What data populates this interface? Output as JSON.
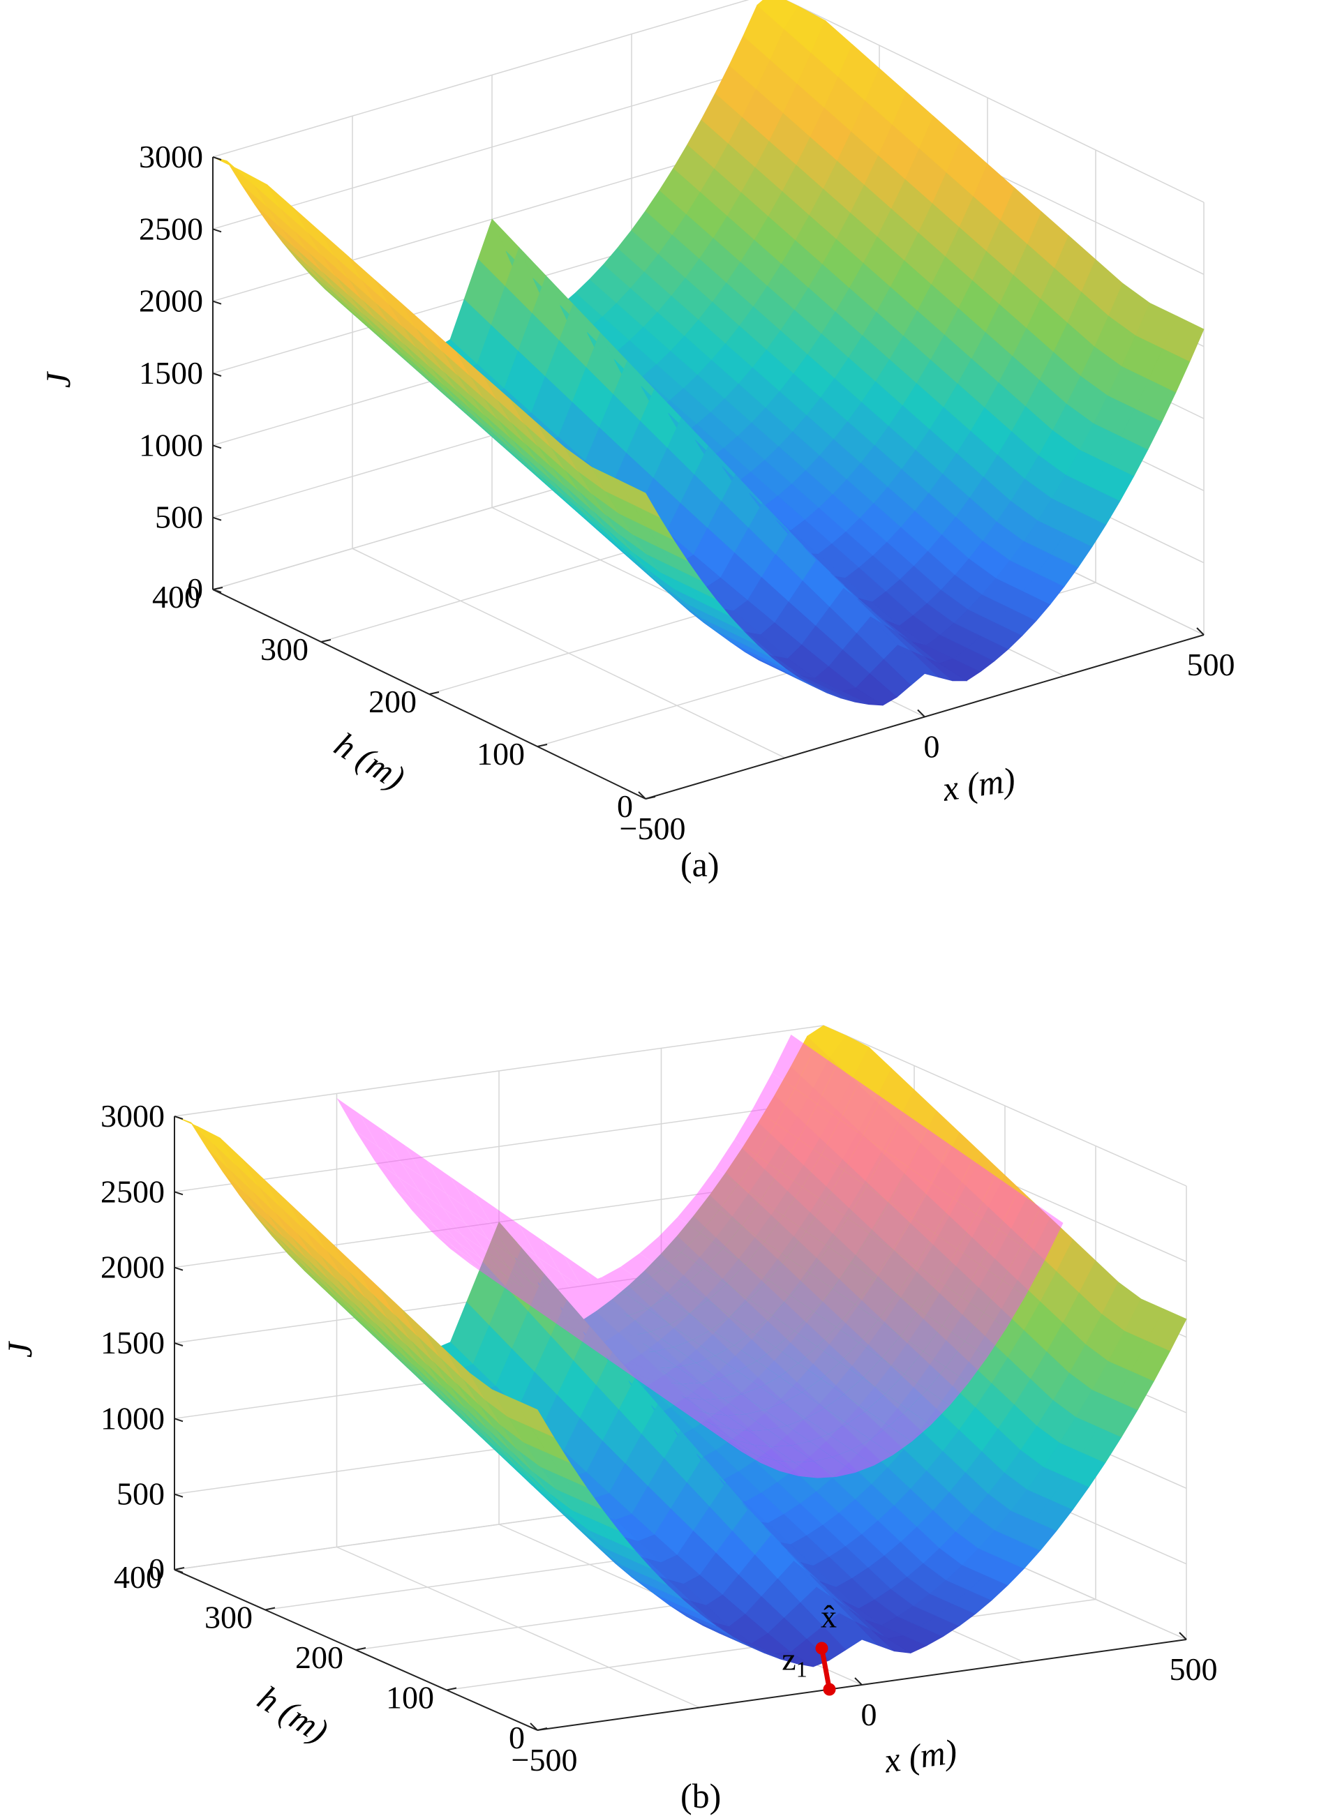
{
  "chart_data": [
    {
      "type": "surface3d",
      "panel_label": "(a)",
      "xlabel": "x (m)",
      "ylabel": "h (m)",
      "zlabel": "J",
      "xlim": [
        -500,
        500
      ],
      "ylim": [
        0,
        400
      ],
      "zlim": [
        0,
        3000
      ],
      "xticks": [
        "−500",
        "0",
        "500"
      ],
      "yticks": [
        "0",
        "100",
        "200",
        "300",
        "400"
      ],
      "zticks": [
        "0",
        "500",
        "1000",
        "1500",
        "2000",
        "2500",
        "3000"
      ],
      "colormap": [
        "#3e26a8",
        "#2f7cf6",
        "#1ac7c2",
        "#81cc59",
        "#f5bb39",
        "#f9d823"
      ],
      "grid": true,
      "series": [
        {
          "surface": "J(x, h)",
          "peak_x": 0,
          "peak_J": 2000,
          "max_J": 3000
        }
      ]
    },
    {
      "type": "surface3d",
      "panel_label": "(b)",
      "xlabel": "x (m)",
      "ylabel": "h (m)",
      "zlabel": "J",
      "xlim": [
        -500,
        500
      ],
      "ylim": [
        0,
        400
      ],
      "zlim": [
        0,
        3000
      ],
      "xticks": [
        "−500",
        "0",
        "500"
      ],
      "yticks": [
        "0",
        "100",
        "200",
        "300",
        "400"
      ],
      "zticks": [
        "0",
        "500",
        "1000",
        "1500",
        "2000",
        "2500",
        "3000"
      ],
      "colormap": [
        "#3e26a8",
        "#2f7cf6",
        "#1ac7c2",
        "#81cc59",
        "#f5bb39",
        "#f9d823"
      ],
      "overlay_color": "#ff44ff",
      "grid": true,
      "annotations": [
        {
          "label": "z₁",
          "sub": "1",
          "base": "z",
          "x": -50,
          "h": 0
        },
        {
          "label": "x̂",
          "base": "x̂",
          "x": 50,
          "h": 80
        }
      ],
      "marker_color": "#e00000"
    }
  ]
}
